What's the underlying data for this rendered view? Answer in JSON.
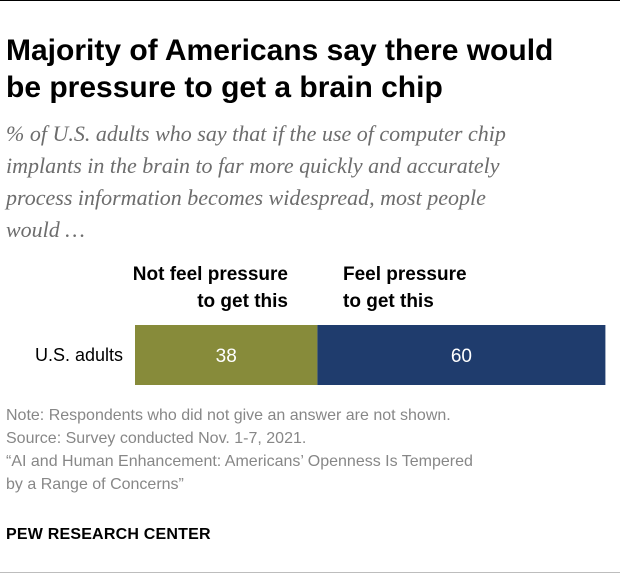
{
  "title_lines": [
    "Majority of Americans say there would",
    "be pressure to get a brain chip"
  ],
  "subtitle_lines": [
    "% of U.S. adults who say that if the use of computer chip",
    "implants in the brain to far more quickly and accurately",
    "process information becomes widespread, most people",
    "would …"
  ],
  "colors": {
    "not_feel": "#878b3a",
    "feel": "#1f3c6d",
    "label_text": "#ffffff"
  },
  "chart_data": {
    "type": "bar",
    "orientation": "horizontal",
    "stacked": true,
    "categories": [
      "U.S. adults"
    ],
    "series": [
      {
        "name": "Not feel pressure to get this",
        "values": [
          38
        ]
      },
      {
        "name": "Feel pressure to get this",
        "values": [
          60
        ]
      }
    ],
    "legend_lines": [
      [
        "Not feel pressure",
        "to get this"
      ],
      [
        "Feel pressure",
        "to get this"
      ]
    ],
    "xlim": [
      0,
      100
    ],
    "title": "",
    "xlabel": "",
    "ylabel": ""
  },
  "notes": [
    "Note: Respondents who did not give an answer are not shown.",
    "Source: Survey conducted Nov. 1-7, 2021.",
    "“AI and Human Enhancement: Americans’ Openness Is Tempered",
    "by a Range of Concerns”"
  ],
  "brand": "PEW RESEARCH CENTER"
}
